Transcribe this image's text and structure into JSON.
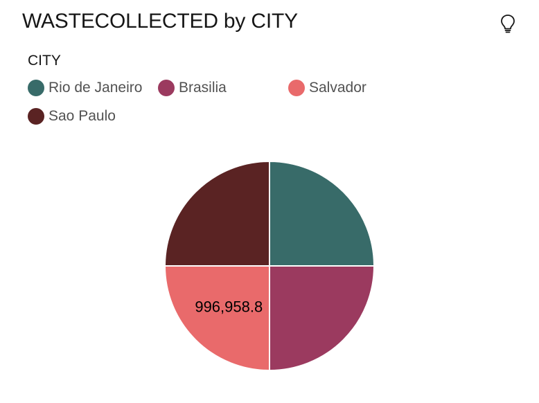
{
  "header": {
    "title": "WASTECOLLECTED by CITY",
    "insight_icon": "lightbulb-icon"
  },
  "legend": {
    "title": "CITY",
    "items": [
      {
        "label": "Rio de Janeiro",
        "color": "#386b69"
      },
      {
        "label": "Brasilia",
        "color": "#9b3a5f"
      },
      {
        "label": "Salvador",
        "color": "#e96a6b"
      },
      {
        "label": "Sao Paulo",
        "color": "#5a2323"
      }
    ]
  },
  "chart_data": {
    "type": "pie",
    "title": "WASTECOLLECTED by CITY",
    "legend_title": "CITY",
    "legend_position": "top-left",
    "categories": [
      "Rio de Janeiro",
      "Brasilia",
      "Salvador",
      "Sao Paulo"
    ],
    "values": [
      996958.8,
      996958.8,
      996958.8,
      996958.8
    ],
    "colors": [
      "#386b69",
      "#9b3a5f",
      "#e96a6b",
      "#5a2323"
    ],
    "data_labels": [
      "",
      "",
      "996,958.8",
      ""
    ]
  }
}
